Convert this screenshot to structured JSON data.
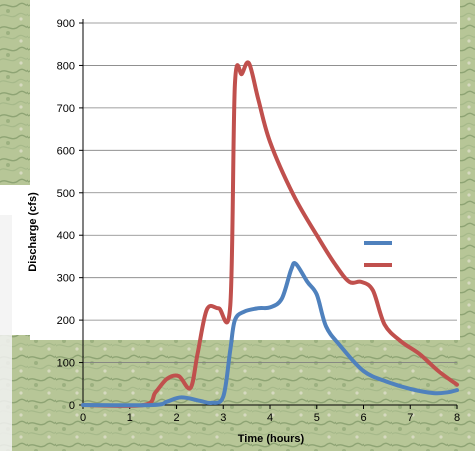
{
  "chart_data": {
    "type": "line",
    "title": "",
    "xlabel": "Time (hours)",
    "ylabel": "Discharge (cfs)",
    "xlim": [
      0,
      8
    ],
    "ylim": [
      0,
      900
    ],
    "x_ticks": [
      "0",
      "1",
      "2",
      "3",
      "4",
      "5",
      "6",
      "7",
      "8"
    ],
    "y_ticks": [
      "0",
      "100",
      "200",
      "300",
      "400",
      "500",
      "600",
      "700",
      "800",
      "900"
    ],
    "grid": "horizontal",
    "legend": "right",
    "colors": {
      "series_1": "#c0504d",
      "series_2": "#4f81bd",
      "grid": "#808080",
      "background_map": "#b9c79a"
    },
    "series": [
      {
        "color": "#c0504d",
        "x": [
          0,
          1.3,
          1.55,
          1.8,
          2.05,
          2.3,
          2.45,
          2.65,
          2.9,
          3.15,
          3.25,
          3.4,
          3.55,
          3.75,
          4.0,
          4.5,
          5.0,
          5.4,
          5.7,
          5.95,
          6.2,
          6.45,
          6.8,
          7.2,
          7.6,
          8.0
        ],
        "y": [
          0,
          0,
          30,
          62,
          68,
          40,
          120,
          225,
          228,
          235,
          755,
          780,
          805,
          720,
          620,
          495,
          400,
          330,
          290,
          290,
          270,
          190,
          150,
          120,
          80,
          48
        ]
      },
      {
        "color": "#4f81bd",
        "x": [
          0,
          1.5,
          1.8,
          2.1,
          2.5,
          2.75,
          3.0,
          3.15,
          3.25,
          3.45,
          3.75,
          4.0,
          4.25,
          4.45,
          4.55,
          4.8,
          5.0,
          5.2,
          5.5,
          6.0,
          6.5,
          7.0,
          7.5,
          7.8,
          8.0
        ],
        "y": [
          0,
          0,
          8,
          18,
          10,
          5,
          20,
          130,
          200,
          220,
          228,
          230,
          250,
          318,
          333,
          290,
          260,
          185,
          140,
          80,
          55,
          38,
          28,
          30,
          35
        ]
      }
    ]
  }
}
